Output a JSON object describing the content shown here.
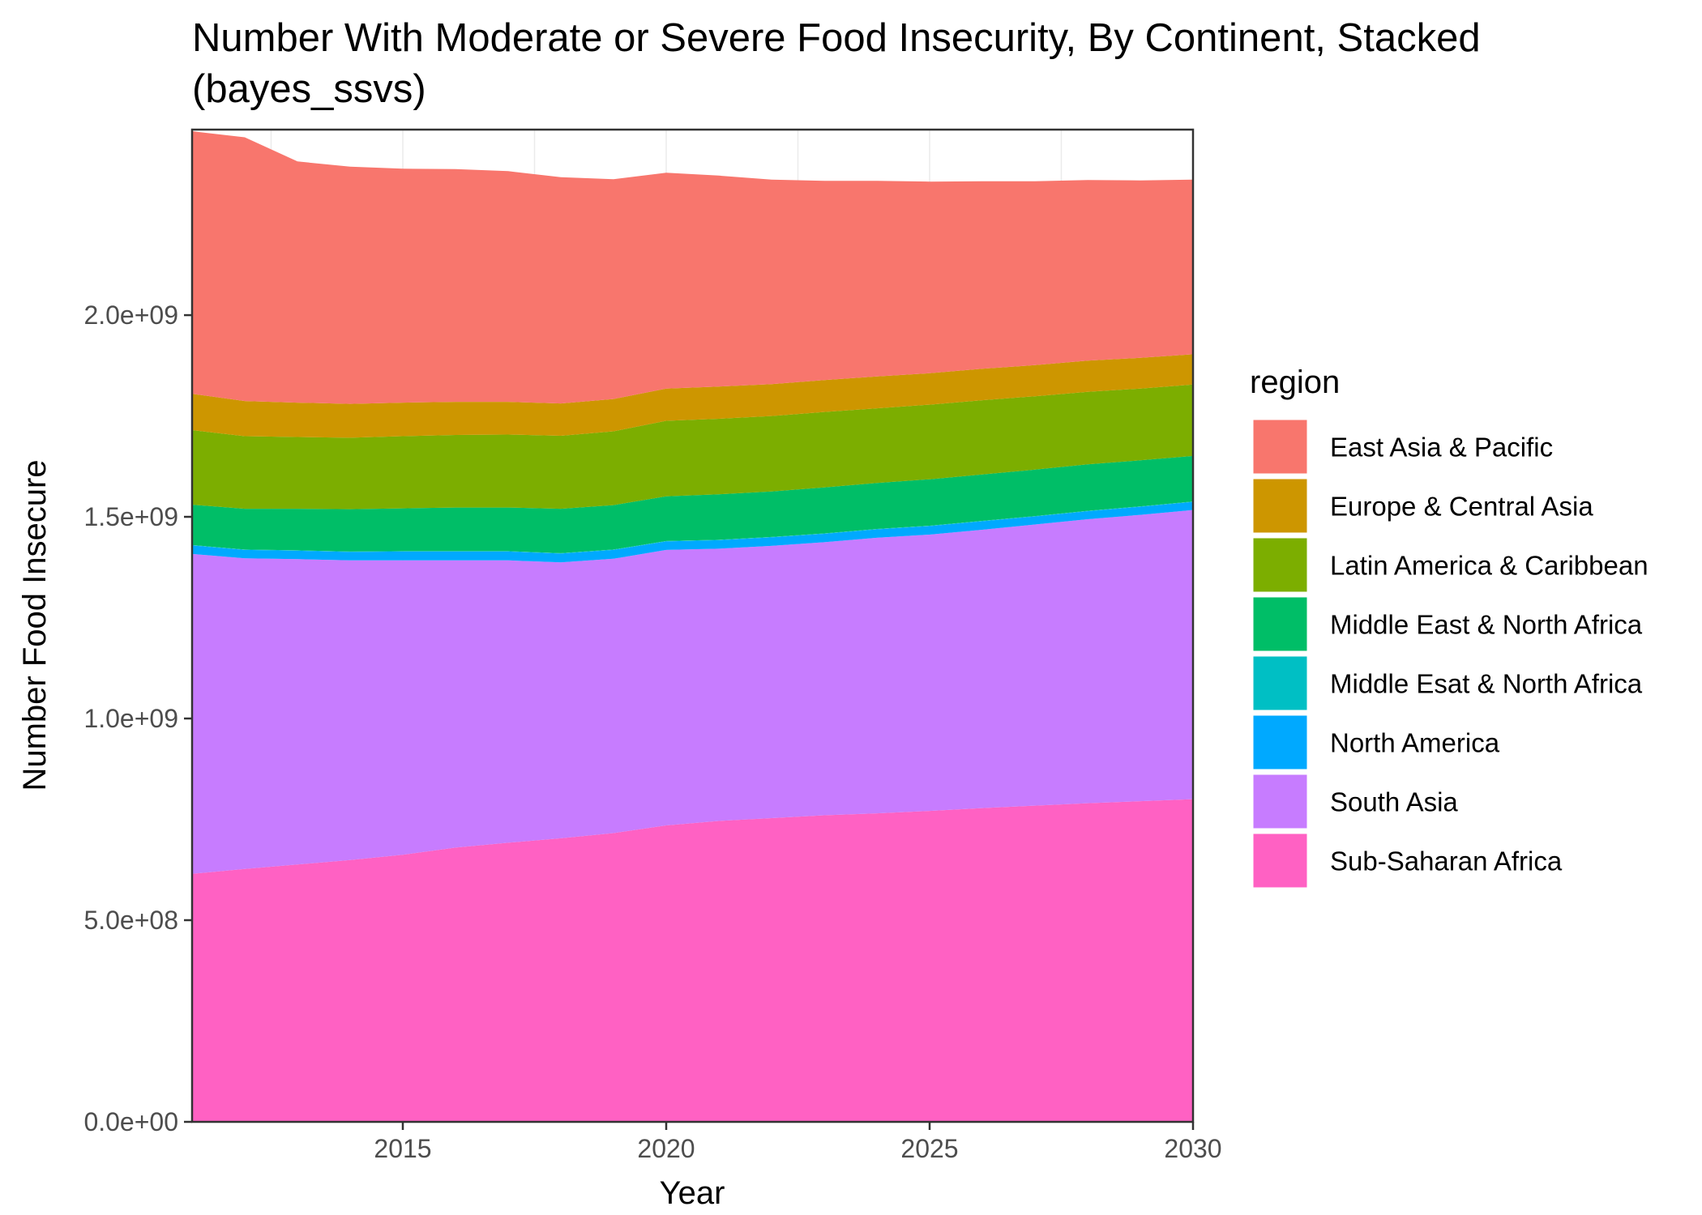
{
  "chart_data": {
    "type": "area",
    "stacked": true,
    "title": "Number With Moderate or Severe Food Insecurity, By Continent, Stacked",
    "subtitle": "(bayes_ssvs)",
    "xlabel": "Year",
    "ylabel": "Number Food Insecure",
    "xlim": [
      2011,
      2030
    ],
    "ylim": [
      0,
      2460000000
    ],
    "x_ticks": [
      2015,
      2020,
      2025,
      2030
    ],
    "y_ticks": [
      {
        "value": 0,
        "label": "0.0e+00"
      },
      {
        "value": 500000000,
        "label": "5.0e+08"
      },
      {
        "value": 1000000000,
        "label": "1.0e+09"
      },
      {
        "value": 1500000000,
        "label": "1.5e+09"
      },
      {
        "value": 2000000000,
        "label": "2.0e+09"
      }
    ],
    "grid": true,
    "legend": {
      "title": "region",
      "position": "right"
    },
    "x": [
      2011,
      2012,
      2013,
      2014,
      2015,
      2016,
      2017,
      2018,
      2019,
      2020,
      2021,
      2022,
      2023,
      2024,
      2025,
      2026,
      2027,
      2028,
      2029,
      2030
    ],
    "series": [
      {
        "name": "Sub-Saharan Africa",
        "color": "#FF61C3",
        "values": [
          615000000,
          627000000,
          638000000,
          649000000,
          662000000,
          680000000,
          692000000,
          703000000,
          716000000,
          735000000,
          746000000,
          753000000,
          760000000,
          765000000,
          771000000,
          778000000,
          784000000,
          790000000,
          795000000,
          800000000
        ]
      },
      {
        "name": "South Asia",
        "color": "#C77CFF",
        "values": [
          793000000,
          770000000,
          757000000,
          743000000,
          730000000,
          712000000,
          700000000,
          684000000,
          680000000,
          683000000,
          675000000,
          675000000,
          677000000,
          683000000,
          685000000,
          690000000,
          697000000,
          704000000,
          710000000,
          717000000
        ]
      },
      {
        "name": "North America",
        "color": "#00A9FF",
        "values": [
          21000000,
          21000000,
          21000000,
          21000000,
          22000000,
          22000000,
          22000000,
          22000000,
          22000000,
          21000000,
          21000000,
          21000000,
          21000000,
          21000000,
          21000000,
          21000000,
          20000000,
          20000000,
          20000000,
          20000000
        ]
      },
      {
        "name": "Middle Esat & North Africa",
        "color": "#00BFC4",
        "values": [
          1000000,
          1000000,
          1000000,
          1000000,
          1000000,
          1000000,
          1000000,
          1000000,
          1000000,
          1000000,
          1000000,
          1000000,
          1000000,
          1000000,
          1000000,
          1000000,
          1000000,
          1000000,
          1000000,
          1000000
        ]
      },
      {
        "name": "Middle East & North Africa",
        "color": "#00BE67",
        "values": [
          100000000,
          101000000,
          103000000,
          105000000,
          106000000,
          108000000,
          108000000,
          110000000,
          110000000,
          111000000,
          113000000,
          113000000,
          114000000,
          114000000,
          115000000,
          115000000,
          115000000,
          115000000,
          114000000,
          113000000
        ]
      },
      {
        "name": "Latin America & Caribbean",
        "color": "#7CAE00",
        "values": [
          185000000,
          180000000,
          178000000,
          177000000,
          179000000,
          180000000,
          181000000,
          181000000,
          183000000,
          187000000,
          187000000,
          187000000,
          187000000,
          185000000,
          185000000,
          184000000,
          182000000,
          180000000,
          178000000,
          177000000
        ]
      },
      {
        "name": "Europe & Central Asia",
        "color": "#CD9600",
        "values": [
          90000000,
          87000000,
          85000000,
          84000000,
          83000000,
          82000000,
          81000000,
          80000000,
          80000000,
          80000000,
          80000000,
          79000000,
          79000000,
          79000000,
          78000000,
          78000000,
          77000000,
          77000000,
          76000000,
          75000000
        ]
      },
      {
        "name": "East Asia & Pacific",
        "color": "#F8766D",
        "values": [
          651000000,
          654000000,
          598000000,
          588000000,
          580000000,
          577000000,
          572000000,
          561000000,
          545000000,
          535000000,
          523000000,
          507000000,
          494000000,
          485000000,
          475000000,
          465000000,
          456000000,
          448000000,
          440000000,
          433000000
        ]
      }
    ],
    "legend_order": [
      "East Asia & Pacific",
      "Europe & Central Asia",
      "Latin America & Caribbean",
      "Middle East & North Africa",
      "Middle Esat & North Africa",
      "North America",
      "South Asia",
      "Sub-Saharan Africa"
    ]
  }
}
